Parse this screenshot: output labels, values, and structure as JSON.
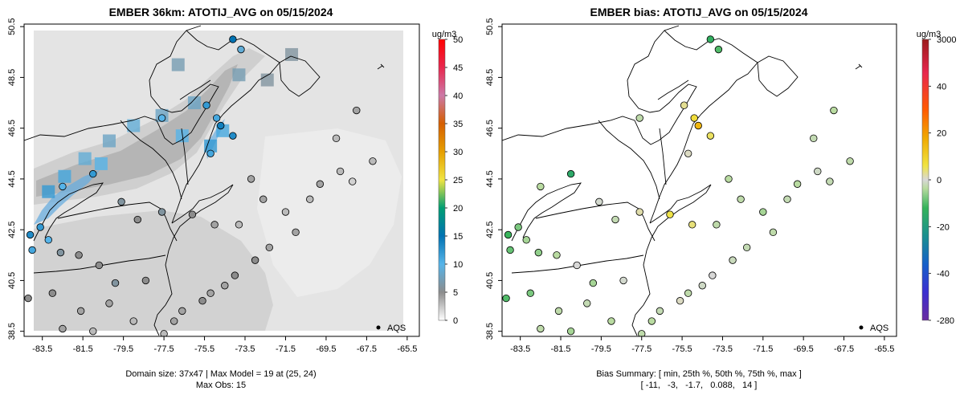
{
  "chart_data": [
    {
      "type": "map",
      "title": "EMBER 36km: ATOTIJ_AVG on 05/15/2024",
      "x_ticks": [
        "-83.5",
        "-81.5",
        "-79.5",
        "-77.5",
        "-75.5",
        "-73.5",
        "-71.5",
        "-69.5",
        "-67.5",
        "-65.5"
      ],
      "y_ticks": [
        "38.5",
        "40.5",
        "42.5",
        "44.5",
        "46.5",
        "48.5",
        "50.5"
      ],
      "xlim": [
        -84.4,
        -64.9
      ],
      "ylim": [
        38.3,
        50.6
      ],
      "colorbar": {
        "unit": "ug/m3",
        "labels": [
          "0",
          "5",
          "10",
          "15",
          "20",
          "25",
          "30",
          "35",
          "40",
          "45",
          "50"
        ],
        "colors": [
          "#ffffff",
          "#8c8c8c",
          "#56b4e9",
          "#0072b2",
          "#009e73",
          "#f0e442",
          "#e69f00",
          "#d55e00",
          "#cc79a7",
          "#e8274e",
          "#ff0000"
        ]
      },
      "legend": "AQS",
      "footer": [
        "Domain size: 37x47 | Max Model = 19 at (25, 24)",
        "Max Obs: 15"
      ],
      "model_cells": [
        {
          "lon": -83.2,
          "lat": 44.0,
          "value": 12
        },
        {
          "lon": -82.4,
          "lat": 44.6,
          "value": 11
        },
        {
          "lon": -81.4,
          "lat": 45.3,
          "value": 9
        },
        {
          "lon": -80.2,
          "lat": 46.0,
          "value": 8
        },
        {
          "lon": -79.0,
          "lat": 46.6,
          "value": 9
        },
        {
          "lon": -77.6,
          "lat": 47.0,
          "value": 8
        },
        {
          "lon": -76.6,
          "lat": 46.2,
          "value": 10
        },
        {
          "lon": -76.0,
          "lat": 47.5,
          "value": 8
        },
        {
          "lon": -74.6,
          "lat": 46.4,
          "value": 11
        },
        {
          "lon": -75.2,
          "lat": 45.8,
          "value": 12
        },
        {
          "lon": -73.8,
          "lat": 48.6,
          "value": 7
        },
        {
          "lon": -76.8,
          "lat": 49.0,
          "value": 7
        },
        {
          "lon": -71.2,
          "lat": 49.4,
          "value": 6
        },
        {
          "lon": -72.4,
          "lat": 48.4,
          "value": 6
        },
        {
          "lon": -80.6,
          "lat": 45.1,
          "value": 10
        }
      ],
      "sites": [
        {
          "lon": -84.1,
          "lat": 42.3,
          "value": 13
        },
        {
          "lon": -83.6,
          "lat": 42.6,
          "value": 12
        },
        {
          "lon": -83.2,
          "lat": 42.1,
          "value": 10
        },
        {
          "lon": -84.0,
          "lat": 41.7,
          "value": 11
        },
        {
          "lon": -82.5,
          "lat": 44.2,
          "value": 10
        },
        {
          "lon": -81.0,
          "lat": 44.7,
          "value": 12
        },
        {
          "lon": -74.7,
          "lat": 46.6,
          "value": 14
        },
        {
          "lon": -74.9,
          "lat": 46.9,
          "value": 11
        },
        {
          "lon": -75.4,
          "lat": 47.4,
          "value": 12
        },
        {
          "lon": -74.1,
          "lat": 46.2,
          "value": 13
        },
        {
          "lon": -75.2,
          "lat": 45.5,
          "value": 11
        },
        {
          "lon": -74.1,
          "lat": 50.0,
          "value": 15
        },
        {
          "lon": -73.7,
          "lat": 49.6,
          "value": 9
        },
        {
          "lon": -77.6,
          "lat": 46.9,
          "value": 10
        },
        {
          "lon": -79.6,
          "lat": 43.6,
          "value": 6
        },
        {
          "lon": -78.8,
          "lat": 42.9,
          "value": 5
        },
        {
          "lon": -77.6,
          "lat": 43.2,
          "value": 6
        },
        {
          "lon": -76.1,
          "lat": 43.1,
          "value": 5
        },
        {
          "lon": -75.0,
          "lat": 42.7,
          "value": 4
        },
        {
          "lon": -73.8,
          "lat": 42.7,
          "value": 3
        },
        {
          "lon": -73.2,
          "lat": 44.5,
          "value": 4
        },
        {
          "lon": -72.6,
          "lat": 43.7,
          "value": 4
        },
        {
          "lon": -71.5,
          "lat": 43.2,
          "value": 3
        },
        {
          "lon": -71.0,
          "lat": 42.4,
          "value": 4
        },
        {
          "lon": -70.3,
          "lat": 43.7,
          "value": 3
        },
        {
          "lon": -69.8,
          "lat": 44.3,
          "value": 4
        },
        {
          "lon": -68.8,
          "lat": 44.8,
          "value": 3
        },
        {
          "lon": -68.2,
          "lat": 44.4,
          "value": 2
        },
        {
          "lon": -67.2,
          "lat": 45.2,
          "value": 3
        },
        {
          "lon": -68.0,
          "lat": 47.2,
          "value": 4
        },
        {
          "lon": -69.0,
          "lat": 46.1,
          "value": 3
        },
        {
          "lon": -72.3,
          "lat": 41.8,
          "value": 4
        },
        {
          "lon": -73.0,
          "lat": 41.3,
          "value": 5
        },
        {
          "lon": -74.0,
          "lat": 40.7,
          "value": 5
        },
        {
          "lon": -74.5,
          "lat": 40.3,
          "value": 4
        },
        {
          "lon": -75.2,
          "lat": 40.0,
          "value": 4
        },
        {
          "lon": -75.6,
          "lat": 39.7,
          "value": 5
        },
        {
          "lon": -76.6,
          "lat": 39.3,
          "value": 4
        },
        {
          "lon": -77.0,
          "lat": 38.9,
          "value": 4
        },
        {
          "lon": -77.5,
          "lat": 38.4,
          "value": 3
        },
        {
          "lon": -78.4,
          "lat": 40.5,
          "value": 5
        },
        {
          "lon": -79.9,
          "lat": 40.4,
          "value": 6
        },
        {
          "lon": -80.7,
          "lat": 41.1,
          "value": 5
        },
        {
          "lon": -81.7,
          "lat": 41.5,
          "value": 5
        },
        {
          "lon": -82.6,
          "lat": 41.6,
          "value": 6
        },
        {
          "lon": -83.0,
          "lat": 40.0,
          "value": 5
        },
        {
          "lon": -84.2,
          "lat": 39.8,
          "value": 5
        },
        {
          "lon": -81.6,
          "lat": 39.3,
          "value": 4
        },
        {
          "lon": -80.2,
          "lat": 39.6,
          "value": 4
        },
        {
          "lon": -79.0,
          "lat": 38.9,
          "value": 3
        },
        {
          "lon": -82.5,
          "lat": 38.6,
          "value": 4
        },
        {
          "lon": -81.0,
          "lat": 38.5,
          "value": 3
        }
      ]
    },
    {
      "type": "map",
      "title": "EMBER bias: ATOTIJ_AVG on 05/15/2024",
      "x_ticks": [
        "-83.5",
        "-81.5",
        "-79.5",
        "-77.5",
        "-75.5",
        "-73.5",
        "-71.5",
        "-69.5",
        "-67.5",
        "-65.5"
      ],
      "y_ticks": [
        "38.5",
        "40.5",
        "42.5",
        "44.5",
        "46.5",
        "48.5",
        "50.5"
      ],
      "xlim": [
        -84.4,
        -64.9
      ],
      "ylim": [
        38.3,
        50.6
      ],
      "colorbar": {
        "unit": "ug/m3",
        "labels": [
          "3000",
          "40",
          "20",
          "0",
          "-20",
          "-40",
          "-280"
        ],
        "colors": [
          "#9b1b1b",
          "#e8274e",
          "#ff5a00",
          "#f0a800",
          "#f0e442",
          "#d8d8d8",
          "#b9dba0",
          "#35b35a",
          "#1a8f8f",
          "#1560c9",
          "#3b2fd0",
          "#6a2ba0"
        ]
      },
      "legend": "AQS",
      "footer": [
        "Bias Summary: [ min, 25th %, 50th %, 75th %, max ]",
        "[ -11,   -3,   -1.7,   0.088,   14 ]"
      ],
      "summary": {
        "min": -11,
        "p25": -3,
        "p50": -1.7,
        "p75": 0.088,
        "max": 14
      },
      "sites": [
        {
          "lon": -84.1,
          "lat": 42.3,
          "value": -9
        },
        {
          "lon": -83.6,
          "lat": 42.6,
          "value": -6
        },
        {
          "lon": -83.2,
          "lat": 42.1,
          "value": -4
        },
        {
          "lon": -84.0,
          "lat": 41.7,
          "value": -7
        },
        {
          "lon": -82.5,
          "lat": 44.2,
          "value": -3
        },
        {
          "lon": -81.0,
          "lat": 44.7,
          "value": -11
        },
        {
          "lon": -74.7,
          "lat": 46.6,
          "value": 14
        },
        {
          "lon": -74.9,
          "lat": 46.9,
          "value": 10
        },
        {
          "lon": -75.4,
          "lat": 47.4,
          "value": 6
        },
        {
          "lon": -74.1,
          "lat": 46.2,
          "value": 8
        },
        {
          "lon": -75.2,
          "lat": 45.5,
          "value": 4
        },
        {
          "lon": -74.1,
          "lat": 50.0,
          "value": -10
        },
        {
          "lon": -73.7,
          "lat": 49.6,
          "value": -8
        },
        {
          "lon": -77.6,
          "lat": 46.9,
          "value": -2
        },
        {
          "lon": -79.6,
          "lat": 43.6,
          "value": 2
        },
        {
          "lon": -78.8,
          "lat": 42.9,
          "value": -1
        },
        {
          "lon": -77.6,
          "lat": 43.2,
          "value": 5
        },
        {
          "lon": -76.1,
          "lat": 43.1,
          "value": 9
        },
        {
          "lon": -75.0,
          "lat": 42.7,
          "value": 7
        },
        {
          "lon": -73.8,
          "lat": 42.7,
          "value": -2
        },
        {
          "lon": -73.2,
          "lat": 44.5,
          "value": -3
        },
        {
          "lon": -72.6,
          "lat": 43.7,
          "value": -2
        },
        {
          "lon": -71.5,
          "lat": 43.2,
          "value": -4
        },
        {
          "lon": -71.0,
          "lat": 42.4,
          "value": -2
        },
        {
          "lon": -70.3,
          "lat": 43.7,
          "value": -1
        },
        {
          "lon": -69.8,
          "lat": 44.3,
          "value": -3
        },
        {
          "lon": -68.8,
          "lat": 44.8,
          "value": 1
        },
        {
          "lon": -68.2,
          "lat": 44.4,
          "value": -1
        },
        {
          "lon": -67.2,
          "lat": 45.2,
          "value": -2
        },
        {
          "lon": -68.0,
          "lat": 47.2,
          "value": -3
        },
        {
          "lon": -69.0,
          "lat": 46.1,
          "value": -1
        },
        {
          "lon": -72.3,
          "lat": 41.8,
          "value": -1
        },
        {
          "lon": -73.0,
          "lat": 41.3,
          "value": 0
        },
        {
          "lon": -74.0,
          "lat": 40.7,
          "value": 3
        },
        {
          "lon": -74.5,
          "lat": 40.3,
          "value": 1
        },
        {
          "lon": -75.2,
          "lat": 40.0,
          "value": -2
        },
        {
          "lon": -75.6,
          "lat": 39.7,
          "value": 4
        },
        {
          "lon": -76.6,
          "lat": 39.3,
          "value": -1
        },
        {
          "lon": -77.0,
          "lat": 38.9,
          "value": -3
        },
        {
          "lon": -77.5,
          "lat": 38.4,
          "value": -2
        },
        {
          "lon": -78.4,
          "lat": 40.5,
          "value": 2
        },
        {
          "lon": -79.9,
          "lat": 40.4,
          "value": -4
        },
        {
          "lon": -80.7,
          "lat": 41.1,
          "value": 3
        },
        {
          "lon": -81.7,
          "lat": 41.5,
          "value": -3
        },
        {
          "lon": -82.6,
          "lat": 41.6,
          "value": -5
        },
        {
          "lon": -83.0,
          "lat": 40.0,
          "value": -6
        },
        {
          "lon": -84.2,
          "lat": 39.8,
          "value": -8
        },
        {
          "lon": -81.6,
          "lat": 39.3,
          "value": -2
        },
        {
          "lon": -80.2,
          "lat": 39.6,
          "value": -1
        },
        {
          "lon": -79.0,
          "lat": 38.9,
          "value": -3
        },
        {
          "lon": -82.5,
          "lat": 38.6,
          "value": -2
        },
        {
          "lon": -81.0,
          "lat": 38.5,
          "value": -4
        }
      ]
    }
  ]
}
